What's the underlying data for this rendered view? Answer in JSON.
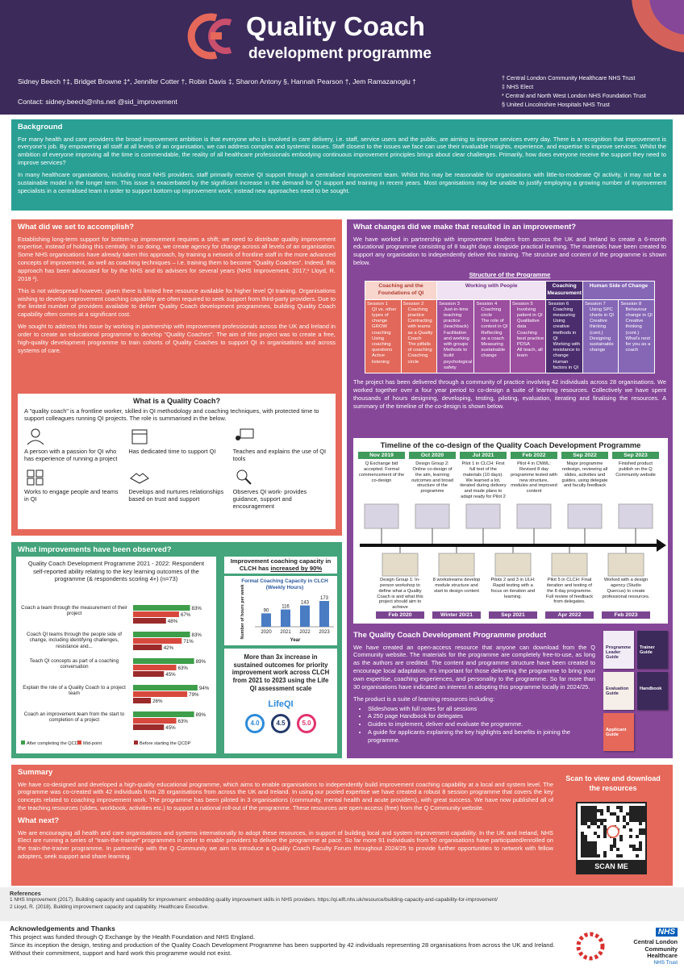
{
  "header": {
    "title": "Quality Coach",
    "subtitle": "development programme",
    "authors": "Sidney Beech †‡, Bridget Browne ‡*, Jennifer Cotter †, Robin Davis ‡, Sharon Antony §, Hannah Pearson †, Jem Ramazanoglu †",
    "contact": "Contact: sidney.beech@nhs.net @sid_improvement",
    "affiliations": [
      "†  Central London Community Healthcare NHS Trust",
      "‡  NHS Elect",
      "*  Central and North West London NHS Foundation Trust",
      "§  United Lincolnshire Hospitals NHS Trust"
    ]
  },
  "background": {
    "heading": "Background",
    "paragraphs": [
      "For many health and care providers the broad improvement ambition is that everyone who is involved in care delivery, i.e. staff, service users and the public, are aiming to improve services every day. There is a recognition that improvement is everyone's job. By empowering all staff at all levels of an organisation, we can address complex and systemic issues. Staff closest to the issues we face can use their invaluable insights, experience, and expertise to improve services. Whilst the ambition of everyone improving all the time is commendable, the reality of all healthcare professionals embodying continuous improvement principles brings about clear challenges. Primarily, how does everyone receive the support they need to improve services?",
      "In many healthcare organisations, including most NHS providers, staff primarily receive QI support through a centralised improvement team. Whilst this may be reasonable for organisations with little-to-moderate QI activity, it may not be a sustainable model in the longer term. This issue is exacerbated by the significant increase in the demand for QI support and training in recent years. Most organisations may be unable to justify employing a growing number of improvement specialists in a centralised team in order to support bottom-up improvement work; instead new approaches need to be sought."
    ]
  },
  "accomplish": {
    "heading": "What did we set to accomplish?",
    "paragraphs": [
      "Establishing long-term support for bottom-up improvement requires a shift; we need to distribute quality improvement expertise, instead of holding this centrally. In so doing, we create agency for change across all levels of an organisation. Some NHS organisations have already taken this approach, by training a network of frontline staff in the more advanced concepts of improvement, as well as coaching techniques – i.e. training them to become \"Quality Coaches\". Indeed, this approach has been advocated for by the NHS and its advisers for several years (NHS Improvement, 2017;¹ Lloyd, R. 2018 ²).",
      "This is not widespread however, given there is limited free resource available for higher level QI training. Organisations wishing to develop improvement coaching capability are often required to seek support from third-party providers. Due to the limited number of providers available to deliver Quality Coach development programmes, building Quality Coach capability often comes at a significant cost.",
      "We sought to address this issue by working in partnership with improvement professionals across the UK and Ireland in order to create an educational programme to develop \"Quality Coaches\". The aim of this project was to create a free, high-quality development programme to train cohorts of Quality Coaches to support QI in organisations and across systems of care."
    ]
  },
  "quality_coach": {
    "heading": "What is a Quality Coach?",
    "intro": "A \"quality coach\" is a frontline worker, skilled in QI methodology and coaching techniques, with protected time to support colleagues running QI projects. The role is summarised in the below.",
    "roles": [
      "A person with a passion for QI who has experience of running a project",
      "Has dedicated time to support QI",
      "Teaches and explains the use of QI tools",
      "Works to engage people and teams in QI",
      "Develops and nurtures relationships based on trust and support",
      "Observes QI work- provides guidance, support and encouragement"
    ]
  },
  "improvements": {
    "heading": "What improvements have been observed?",
    "outcomes_text": "More than 3x increase in sustained outcomes for priority improvement work across CLCH from 2021 to 2023 using the Life QI assessment scale",
    "lifeqi_logo": "LifeQI",
    "scores": [
      "4.0",
      "4.5",
      "5.0"
    ]
  },
  "chart_data": [
    {
      "type": "bar",
      "orientation": "horizontal",
      "title": "Quality Coach Development Programme 2021 - 2022: Respondent self-reported ability relating to the key learning outcomes of the programme (& respondents scoring 4+) (n=73)",
      "categories": [
        "Coach a team through the measurement of their project",
        "Coach QI teams through the people side of change, including identifying challenges, resistance and...",
        "Teach QI concepts as part of a coaching conversation",
        "Explain the role of a Quality Coach to a project team",
        "Coach an improvement team from the start to completion of a project"
      ],
      "xlim": [
        0,
        100
      ],
      "series": [
        {
          "name": "After completing the QCDP",
          "color": "#3e9e4a",
          "values": [
            83,
            83,
            89,
            94,
            89
          ],
          "value_labels": [
            "83%",
            "83%",
            "89%",
            "94%",
            "89%"
          ]
        },
        {
          "name": "Mid-point",
          "color": "#d8493d",
          "values": [
            67,
            71,
            63,
            79,
            63
          ],
          "value_labels": [
            "67%",
            "71%",
            "63%",
            "79%",
            "63%"
          ]
        },
        {
          "name": "Before starting the QCDP",
          "color": "#9b2b2b",
          "values": [
            48,
            42,
            45,
            26,
            45
          ],
          "value_labels": [
            "48%",
            "42%",
            "45%",
            "26%",
            "45%"
          ]
        }
      ]
    },
    {
      "type": "bar",
      "orientation": "vertical",
      "title": "Improvement coaching capacity in CLCH has",
      "title_emphasis": "increased by 90%",
      "subtitle": "Formal Coaching Capacity in CLCH (Weekly Hours)",
      "x_label": "Year",
      "y_label": "Number of hours per week",
      "categories": [
        "2020",
        "2021",
        "2022",
        "2023"
      ],
      "values": [
        90,
        116,
        143,
        173
      ],
      "color": "#4a7cc4",
      "ylim": [
        0,
        200
      ]
    }
  ],
  "changes": {
    "heading": "What changes did we make that resulted in an improvement?",
    "paragraphs": [
      "We have worked in partnership with improvement leaders from across the UK and Ireland to create a 6-month educational programme consisting of 8 taught days alongside practical learning. The materials have been created to support any organisation to independently deliver this training. The structure and content of the programme is shown below.",
      "The project has been delivered through a community of practice involving 42 individuals across 28 organisations. We worked together over a four year period to co-design a suite of learning resources. Collectively we have spent thousands of hours designing, developing, testing, piloting, evaluation, iterating and finalising the resources. A summary of the timeline of the co-design is shown below."
    ],
    "structure_title": "Structure of the Programme",
    "groups": [
      {
        "title": "Coaching and the Foundations of QI",
        "sessions": [
          {
            "title": "Session 1",
            "items": [
              "QI vs. other types of change",
              "GROW coaching",
              "Using coaching questions",
              "Active listening"
            ]
          },
          {
            "title": "Session 2",
            "items": [
              "Coaching practice",
              "Contracting with teams as a Quality Coach",
              "The pitfalls of coaching",
              "Coaching circle"
            ]
          }
        ]
      },
      {
        "title": "Working with People",
        "sessions": [
          {
            "title": "Session 3",
            "items": [
              "Just-in-time teaching practice (teachback)",
              "Facilitation and working with groups",
              "Methods to build psychological safety"
            ]
          },
          {
            "title": "Session 4",
            "items": [
              "Coaching circle",
              "The role of context in QI",
              "Reflecting as a coach",
              "Measuring sustainable change"
            ]
          },
          {
            "title": "Session 5",
            "items": [
              "Involving patient in QI",
              "Qualitative data",
              "Coaching best practice PDSA",
              "All teach, all learn"
            ]
          }
        ]
      },
      {
        "title": "Coaching Measurement",
        "sessions": [
          {
            "title": "Session 6",
            "items": [
              "Coaching measuring",
              "Using creative methods in QI",
              "Working with resistance to change",
              "Human factors in QI"
            ]
          }
        ]
      },
      {
        "title": "Human Side of Change",
        "sessions": [
          {
            "title": "Session 7",
            "items": [
              "Using SPC charts in QI",
              "Creative thinking (cont.)",
              "Designing sustainable change"
            ]
          },
          {
            "title": "Session 8",
            "items": [
              "Behaviour change in QI",
              "Creative thinking (cont.)",
              "What's next for you as a coach"
            ]
          }
        ]
      }
    ]
  },
  "timeline": {
    "title": "Timeline of the co-design of the Quality Coach Development Programme",
    "above": [
      {
        "date": "Nov 2019",
        "text": "Q Exchange bid accepted. Formal commencement of the co-design"
      },
      {
        "date": "Oct 2020",
        "text": "Design Group 2: Online co-design of the aim, learning outcomes and broad structure of the programme"
      },
      {
        "date": "Jul 2021",
        "text": "Pilot 1 in CLCH: First full test of the materials (10 days). We learned a lot, iterated during delivery and made plans to adapt ready for Pilot 2"
      },
      {
        "date": "Feb 2022",
        "text": "Pilot 4 in CNWL: Revised 8 day programme tested with new structure, modules and improved content"
      },
      {
        "date": "Sep 2022",
        "text": "Major programme redesign, reviewing all slides, activities and guides, using delegate and faculty feedback"
      },
      {
        "date": "Sep 2023",
        "text": "Finished product publish on the Q Community website"
      }
    ],
    "below": [
      {
        "date": "Feb 2020",
        "text": "Design Group 1: In-person workshop to define what a Quality Coach is and what this project should aim to achieve"
      },
      {
        "date": "Winter 20/21",
        "text": "8 workstreams develop module structure and start to design content"
      },
      {
        "date": "Sep 2021",
        "text": "Pilots 2 and 3 in ULH: Rapid testing with a focus on iteration and learning."
      },
      {
        "date": "Apr 2022",
        "text": "Pilot 5 in CLCH: Final iteration and testing of the 8 day programme. Full review of feedback from delegates."
      },
      {
        "date": "Feb 2023",
        "text": "Worked with a design agency (Studio Quercus) to create professional resources."
      }
    ]
  },
  "product": {
    "heading": "The Quality Coach Development Programme product",
    "paragraph": "We have created an open-access resource that anyone can download from the Q Community website. The materials for the programme are completely free-to-use, as long as the authors are credited. The content and programme structure have been created to encourage local adaptation. It's important for those delivering the programme to bring your own expertise, coaching experiences, and personality to the programme. So far more than 30 organisations have indicated an interest in adopting this programme locally in 2024/25.",
    "list_intro": "The product is a suite of learning resources including:",
    "items": [
      "Slideshows with full notes for all sessions",
      "A 250 page Handbook for delegates",
      "Guides to implement, deliver and evaluate the programme.",
      "A guide for applicants explaining the key highlights and benefits in joining the programme."
    ],
    "covers": [
      "Programme Leader Guide",
      "Trainer Guide",
      "Evaluation Guide",
      "Handbook",
      "Applicant Guide"
    ]
  },
  "summary": {
    "heading": "Summary",
    "text": "We have co-designed and developed a high-quality educational programme, which aims to enable organisations to independently build improvement coaching capability at a local and system level. The programme was co-created with 42 individuals from 28 organisations from across the UK and Ireland. In using our pooled expertise we have created a robust 8 session programme that covers the key concepts related to coaching improvement work. The programme has been piloted in 3 organisations (community, mental health and acute providers), with great success. We have now published all of the teaching resources (slides, workbook, activities etc.) to support a national roll-out of the programme. These resources are open-access (free) from the Q Community website.",
    "next_heading": "What next?",
    "next_text": "We are encouraging all health and care organisations and systems internationally to adopt these resources, in support of building local and system improvement capability. In the UK and Ireland, NHS Elect are running a series of \"train-the-trainer\" programmes in order to enable providers to deliver the programme at pace. So far more 91 individuals from 50 organisations have participated/enrolled on the train-the-trainer programme. In partnership with the Q Community we aim to introduce a Quality Coach Faculty Forum throughout 2024/25 to provide further opportunities to network with fellow adopters, seek support and share learning.",
    "scan_text": "Scan to view and download the resources",
    "scan_button": "SCAN ME"
  },
  "references": {
    "heading": "References",
    "items": [
      "1 NHS Improvement (2017). Building capacity and capability for improvement: embedding quality improvement skills in NHS providers. https://qi.elft.nhs.uk/resource/building-capacity-and-capability-for-improvement/",
      "2 Lloyd, R. (2018). Building improvement capacity and capability. Healthcare Executive."
    ]
  },
  "acknowledgements": {
    "heading": "Acknowledgements and Thanks",
    "paragraphs": [
      "This project was funded through Q Exchange by the Health Foundation and NHS England.",
      "Since its inception the design, testing and production of the Quality Coach Development Programme has been supported by 42 individuals representing 28 organisations from across the UK and Ireland. Without their commitment, support and hard work this programme would not exist."
    ],
    "logo_nhs": "NHS",
    "logo_org": "Central London Community Healthcare",
    "logo_trust": "NHS Trust"
  }
}
